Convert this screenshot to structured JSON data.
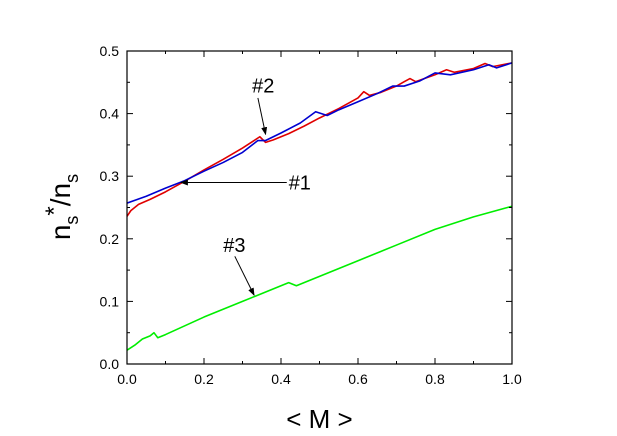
{
  "chart_data": {
    "type": "line",
    "title": "",
    "xlabel": "< M >",
    "ylabel": {
      "base1": "n",
      "sub1": "s",
      "sup": "*",
      "slash": "/n",
      "sub2": "s"
    },
    "xlim": [
      0.0,
      1.0
    ],
    "ylim": [
      0.0,
      0.5
    ],
    "xticks": [
      "0.0",
      "0.2",
      "0.4",
      "0.6",
      "0.8",
      "1.0"
    ],
    "yticks": [
      "0.0",
      "0.1",
      "0.2",
      "0.3",
      "0.4",
      "0.5"
    ],
    "grid": false,
    "legend": "none",
    "series": [
      {
        "color": "#e00000",
        "points": [
          [
            0.0,
            0.236
          ],
          [
            0.01,
            0.245
          ],
          [
            0.03,
            0.255
          ],
          [
            0.06,
            0.263
          ],
          [
            0.1,
            0.275
          ],
          [
            0.15,
            0.292
          ],
          [
            0.2,
            0.31
          ],
          [
            0.25,
            0.327
          ],
          [
            0.3,
            0.345
          ],
          [
            0.33,
            0.357
          ],
          [
            0.345,
            0.363
          ],
          [
            0.36,
            0.354
          ],
          [
            0.38,
            0.358
          ],
          [
            0.42,
            0.368
          ],
          [
            0.46,
            0.38
          ],
          [
            0.5,
            0.393
          ],
          [
            0.55,
            0.408
          ],
          [
            0.6,
            0.425
          ],
          [
            0.615,
            0.435
          ],
          [
            0.63,
            0.429
          ],
          [
            0.66,
            0.434
          ],
          [
            0.7,
            0.444
          ],
          [
            0.72,
            0.451
          ],
          [
            0.735,
            0.456
          ],
          [
            0.75,
            0.451
          ],
          [
            0.8,
            0.462
          ],
          [
            0.83,
            0.47
          ],
          [
            0.85,
            0.466
          ],
          [
            0.9,
            0.472
          ],
          [
            0.93,
            0.48
          ],
          [
            0.95,
            0.475
          ],
          [
            1.0,
            0.481
          ]
        ]
      },
      {
        "color": "#0000d0",
        "points": [
          [
            0.0,
            0.257
          ],
          [
            0.05,
            0.268
          ],
          [
            0.1,
            0.281
          ],
          [
            0.15,
            0.293
          ],
          [
            0.2,
            0.308
          ],
          [
            0.25,
            0.322
          ],
          [
            0.3,
            0.338
          ],
          [
            0.34,
            0.357
          ],
          [
            0.36,
            0.357
          ],
          [
            0.4,
            0.369
          ],
          [
            0.45,
            0.385
          ],
          [
            0.49,
            0.403
          ],
          [
            0.52,
            0.397
          ],
          [
            0.55,
            0.406
          ],
          [
            0.6,
            0.419
          ],
          [
            0.65,
            0.432
          ],
          [
            0.69,
            0.444
          ],
          [
            0.72,
            0.444
          ],
          [
            0.76,
            0.452
          ],
          [
            0.8,
            0.465
          ],
          [
            0.84,
            0.462
          ],
          [
            0.9,
            0.47
          ],
          [
            0.94,
            0.478
          ],
          [
            0.96,
            0.473
          ],
          [
            1.0,
            0.481
          ]
        ]
      },
      {
        "color": "#00ee00",
        "points": [
          [
            0.0,
            0.022
          ],
          [
            0.02,
            0.03
          ],
          [
            0.04,
            0.04
          ],
          [
            0.06,
            0.045
          ],
          [
            0.07,
            0.05
          ],
          [
            0.08,
            0.042
          ],
          [
            0.1,
            0.047
          ],
          [
            0.2,
            0.075
          ],
          [
            0.3,
            0.1
          ],
          [
            0.4,
            0.125
          ],
          [
            0.42,
            0.13
          ],
          [
            0.44,
            0.125
          ],
          [
            0.5,
            0.14
          ],
          [
            0.6,
            0.165
          ],
          [
            0.7,
            0.19
          ],
          [
            0.8,
            0.215
          ],
          [
            0.9,
            0.235
          ],
          [
            1.0,
            0.252
          ]
        ]
      }
    ],
    "annotations": [
      {
        "text": "#1",
        "text_at": [
          0.42,
          0.29
        ],
        "arrow_from": [
          0.415,
          0.29
        ],
        "arrow_to": [
          0.14,
          0.29
        ]
      },
      {
        "text": "#2",
        "text_at": [
          0.325,
          0.445
        ],
        "arrow_from": [
          0.34,
          0.425
        ],
        "arrow_to": [
          0.36,
          0.367
        ]
      },
      {
        "text": "#3",
        "text_at": [
          0.25,
          0.19
        ],
        "arrow_from": [
          0.28,
          0.172
        ],
        "arrow_to": [
          0.33,
          0.11
        ]
      }
    ]
  }
}
